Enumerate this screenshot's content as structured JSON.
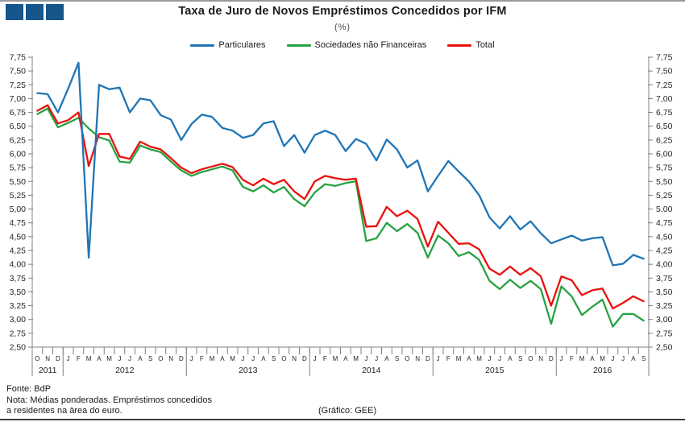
{
  "header": {
    "title": "Taxa de Juro de Novos Empréstimos Concedidos por IFM",
    "subtitle": "(%)"
  },
  "logo": {
    "color": "#16568B",
    "square_count": 3
  },
  "footer": {
    "line1": "Fonte: BdP",
    "line2": "Nota: Médias ponderadas. Empréstimos concedidos",
    "line3": "a residentes na àrea do euro.",
    "credit": "(Gráfico: GEE)"
  },
  "chart_data": {
    "type": "line",
    "title": "Taxa de Juro de Novos Empréstimos Concedidos por IFM",
    "subtitle": "(%)",
    "legend_position": "top-center",
    "grid": false,
    "y_axis": {
      "min": 2.5,
      "max": 7.75,
      "step": 0.25,
      "sides": "both",
      "decimal_separator": "comma",
      "tick_labels": [
        "7,75",
        "7,50",
        "7,25",
        "7,00",
        "6,75",
        "6,50",
        "6,25",
        "6,00",
        "5,75",
        "5,50",
        "5,25",
        "5,00",
        "4,75",
        "4,50",
        "4,25",
        "4,00",
        "3,75",
        "3,50",
        "3,25",
        "3,00",
        "2,75",
        "2,50"
      ]
    },
    "x_axis": {
      "unit": "month",
      "years": [
        {
          "label": "2011",
          "months": [
            "O",
            "N",
            "D"
          ]
        },
        {
          "label": "2012",
          "months": [
            "J",
            "F",
            "M",
            "A",
            "M",
            "J",
            "J",
            "A",
            "S",
            "O",
            "N",
            "D"
          ]
        },
        {
          "label": "2013",
          "months": [
            "J",
            "F",
            "M",
            "A",
            "M",
            "J",
            "J",
            "A",
            "S",
            "O",
            "N",
            "D"
          ]
        },
        {
          "label": "2014",
          "months": [
            "J",
            "F",
            "M",
            "A",
            "M",
            "J",
            "J",
            "A",
            "S",
            "O",
            "N",
            "D"
          ]
        },
        {
          "label": "2015",
          "months": [
            "J",
            "F",
            "M",
            "A",
            "M",
            "J",
            "J",
            "A",
            "S",
            "O",
            "N",
            "D"
          ]
        },
        {
          "label": "2016",
          "months": [
            "J",
            "F",
            "M",
            "A",
            "M",
            "J",
            "J",
            "A",
            "S"
          ]
        }
      ]
    },
    "series": [
      {
        "name": "Particulares",
        "color": "#1F75B5",
        "values": [
          7.1,
          7.08,
          6.75,
          7.18,
          7.65,
          4.12,
          7.25,
          7.17,
          7.2,
          6.75,
          7.0,
          6.97,
          6.7,
          6.62,
          6.25,
          6.54,
          6.71,
          6.67,
          6.47,
          6.42,
          6.29,
          6.34,
          6.55,
          6.59,
          6.14,
          6.34,
          6.02,
          6.34,
          6.42,
          6.34,
          6.05,
          6.27,
          6.18,
          5.88,
          6.26,
          6.08,
          5.75,
          5.88,
          5.32,
          5.6,
          5.87,
          5.68,
          5.5,
          5.25,
          4.85,
          4.65,
          4.87,
          4.63,
          4.78,
          4.56,
          4.38,
          4.45,
          4.52,
          4.43,
          4.47,
          4.49,
          3.98,
          4.01,
          4.17,
          4.1
        ]
      },
      {
        "name": "Sociedades não Financeiras",
        "color": "#27A243",
        "values": [
          6.72,
          6.82,
          6.48,
          6.56,
          6.65,
          6.46,
          6.3,
          6.24,
          5.86,
          5.84,
          6.15,
          6.08,
          6.03,
          5.86,
          5.7,
          5.6,
          5.67,
          5.72,
          5.77,
          5.7,
          5.4,
          5.32,
          5.43,
          5.3,
          5.4,
          5.18,
          5.05,
          5.3,
          5.45,
          5.42,
          5.47,
          5.5,
          4.42,
          4.47,
          4.75,
          4.6,
          4.73,
          4.57,
          4.12,
          4.52,
          4.38,
          4.15,
          4.22,
          4.08,
          3.7,
          3.55,
          3.72,
          3.57,
          3.7,
          3.55,
          2.92,
          3.6,
          3.42,
          3.08,
          3.23,
          3.36,
          2.87,
          3.1,
          3.1,
          2.98
        ]
      },
      {
        "name": "Total",
        "color": "#E8120C",
        "values": [
          6.78,
          6.88,
          6.55,
          6.61,
          6.75,
          5.78,
          6.36,
          6.36,
          5.95,
          5.91,
          6.22,
          6.13,
          6.08,
          5.92,
          5.75,
          5.65,
          5.72,
          5.77,
          5.82,
          5.76,
          5.53,
          5.43,
          5.55,
          5.45,
          5.53,
          5.32,
          5.18,
          5.5,
          5.6,
          5.56,
          5.53,
          5.55,
          4.68,
          4.69,
          5.04,
          4.87,
          4.97,
          4.82,
          4.32,
          4.77,
          4.57,
          4.37,
          4.38,
          4.27,
          3.92,
          3.81,
          3.96,
          3.81,
          3.93,
          3.78,
          3.25,
          3.78,
          3.71,
          3.44,
          3.53,
          3.56,
          3.2,
          3.3,
          3.42,
          3.33
        ]
      }
    ]
  }
}
